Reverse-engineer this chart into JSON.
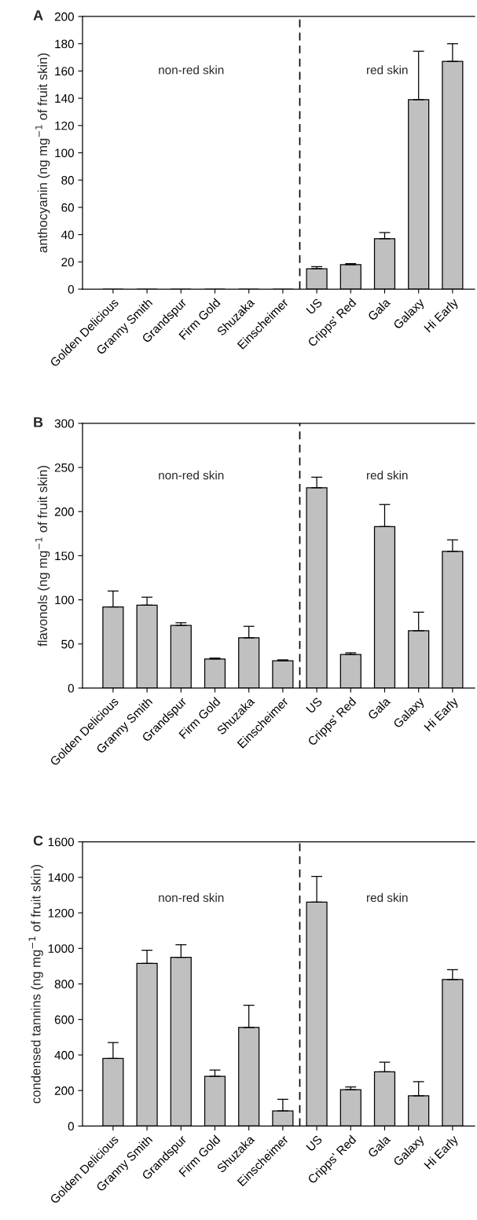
{
  "chart_data": [
    {
      "type": "bar",
      "title": "A",
      "ylabel": "anthocyanin (ng mg$^{−1}$ of fruit skin)",
      "categories": [
        "Golden Delicious",
        "Granny Smith",
        "Grandspur",
        "Firm Gold",
        "Shuzaka",
        "Einscheimer",
        "US",
        "Cripps' Red",
        "Gala",
        "Galaxy",
        "Hi Early"
      ],
      "values": [
        0,
        0,
        0,
        0,
        0,
        0,
        15,
        18,
        37,
        139,
        167
      ],
      "errors": [
        null,
        null,
        null,
        null,
        null,
        null,
        [
          15,
          16.5
        ],
        [
          18,
          18.7
        ],
        [
          37,
          41.5
        ],
        [
          139,
          174.5
        ],
        [
          167,
          180
        ]
      ],
      "color": "#c0c0c0",
      "ylim": [
        0,
        200
      ],
      "yticks": [
        0,
        20,
        40,
        60,
        80,
        100,
        120,
        140,
        160,
        180,
        200
      ],
      "annotations": [
        "non-red skin",
        "red skin"
      ],
      "grid": false,
      "legend": false
    },
    {
      "type": "bar",
      "title": "B",
      "ylabel": "flavonols (ng mg$^{−1}$ of fruit skin)",
      "categories": [
        "Golden Delicious",
        "Granny Smith",
        "Grandspur",
        "Firm Gold",
        "Shuzaka",
        "Einscheimer",
        "US",
        "Cripps' Red",
        "Gala",
        "Galaxy",
        "Hi Early"
      ],
      "values": [
        92,
        94,
        71,
        33,
        57,
        31,
        227,
        38,
        183,
        65,
        155
      ],
      "errors": [
        [
          92,
          110
        ],
        [
          94,
          103
        ],
        [
          71,
          74
        ],
        [
          33,
          34
        ],
        [
          57,
          70
        ],
        [
          31,
          32
        ],
        [
          227,
          239
        ],
        [
          38,
          40
        ],
        [
          183,
          208
        ],
        [
          65,
          86
        ],
        [
          155,
          168
        ]
      ],
      "color": "#c0c0c0",
      "ylim": [
        0,
        300
      ],
      "yticks": [
        0,
        50,
        100,
        150,
        200,
        250,
        300
      ],
      "annotations": [
        "non-red skin",
        "red skin"
      ],
      "grid": false,
      "legend": false
    },
    {
      "type": "bar",
      "title": "C",
      "ylabel": "condensed tannins (ng mg$^{−1}$ of fruit skin)",
      "categories": [
        "Golden Delicious",
        "Granny Smith",
        "Grandspur",
        "Firm Gold",
        "Shuzaka",
        "Einscheimer",
        "US",
        "Cripps' Red",
        "Gala",
        "Galaxy",
        "Hi Early"
      ],
      "values": [
        380,
        915,
        950,
        280,
        555,
        85,
        1260,
        205,
        305,
        170,
        825
      ],
      "errors": [
        [
          380,
          470
        ],
        [
          915,
          990
        ],
        [
          950,
          1020
        ],
        [
          280,
          315
        ],
        [
          555,
          680
        ],
        [
          85,
          150
        ],
        [
          1260,
          1405
        ],
        [
          205,
          220
        ],
        [
          305,
          360
        ],
        [
          170,
          250
        ],
        [
          825,
          880
        ]
      ],
      "color": "#c0c0c0",
      "ylim": [
        0,
        1600
      ],
      "yticks": [
        0,
        200,
        400,
        600,
        800,
        1000,
        1200,
        1400,
        1600
      ],
      "annotations": [
        "non-red skin",
        "red skin"
      ],
      "grid": false,
      "legend": false
    }
  ]
}
